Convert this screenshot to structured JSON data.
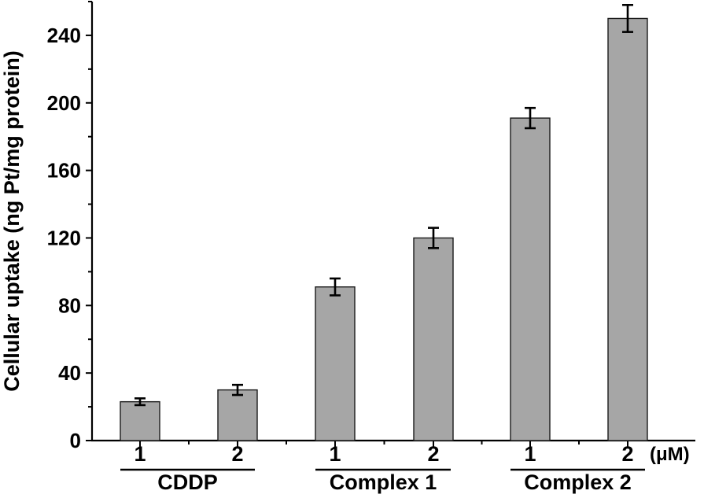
{
  "chart_data": {
    "type": "bar",
    "ylabel": "Cellular uptake (ng Pt/mg protein)",
    "ylim": [
      0,
      260
    ],
    "yticks": [
      "0",
      "40",
      "80",
      "120",
      "160",
      "200",
      "240"
    ],
    "x_unit": "(μM)",
    "categories": [
      "1",
      "2",
      "1",
      "2",
      "1",
      "2"
    ],
    "groups": [
      {
        "name": "CDDP",
        "members": [
          0,
          1
        ]
      },
      {
        "name": "Complex 1",
        "members": [
          2,
          3
        ]
      },
      {
        "name": "Complex 2",
        "members": [
          4,
          5
        ]
      }
    ],
    "values": [
      23,
      30,
      91,
      120,
      191,
      250
    ],
    "errors": [
      2,
      3,
      5,
      6,
      6,
      8
    ],
    "bar_color": "#a6a6a6",
    "grid": false
  }
}
